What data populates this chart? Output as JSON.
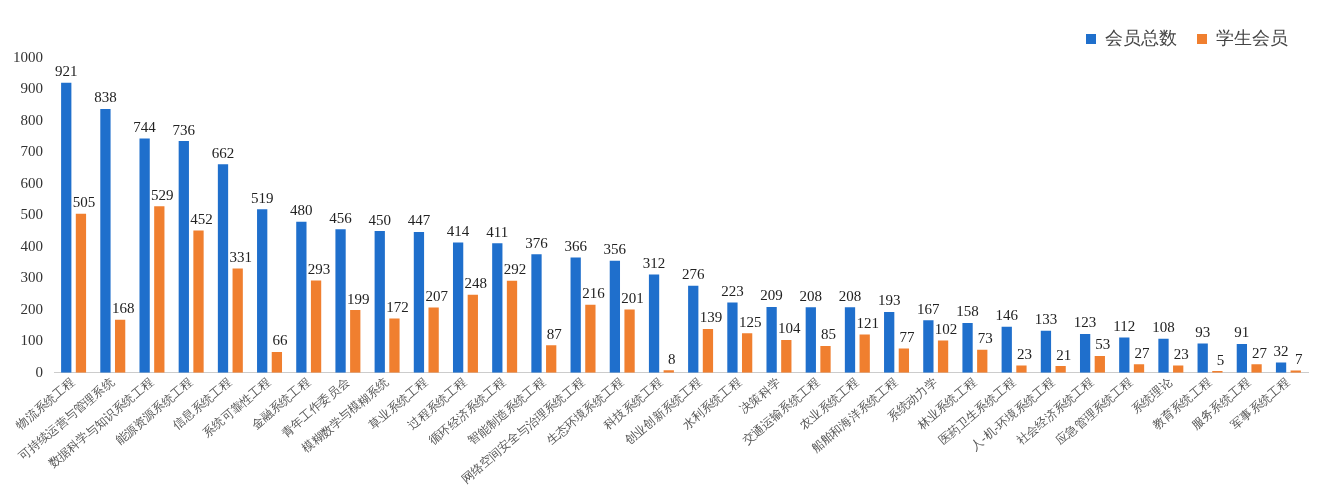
{
  "chart_data": {
    "type": "bar",
    "categories": [
      "物流系统工程",
      "可持续运营与管理系统",
      "数据科学与知识系统工程",
      "能源资源系统工程",
      "信息系统工程",
      "系统可靠性工程",
      "金融系统工程",
      "青年工作委员会",
      "模糊数学与模糊系统",
      "草业系统工程",
      "过程系统工程",
      "循环经济系统工程",
      "智能制造系统工程",
      "网络空间安全与治理系统工程",
      "生态环境系统工程",
      "科技系统工程",
      "创业创新系统工程",
      "水利系统工程",
      "决策科学",
      "交通运输系统工程",
      "农业系统工程",
      "船舶和海洋系统工程",
      "系统动力学",
      "林业系统工程",
      "医药卫生系统工程",
      "人-机-环境系统工程",
      "社会经济系统工程",
      "应急管理系统工程",
      "系统理论",
      "教育系统工程",
      "服务系统工程",
      "军事系统工程"
    ],
    "series": [
      {
        "name": "会员总数",
        "color": "#1f6fcc",
        "values": [
          921,
          838,
          744,
          736,
          662,
          519,
          480,
          456,
          450,
          447,
          414,
          411,
          376,
          366,
          356,
          312,
          276,
          223,
          209,
          208,
          208,
          193,
          167,
          158,
          146,
          133,
          123,
          112,
          108,
          93,
          91,
          32
        ]
      },
      {
        "name": "学生会员",
        "color": "#f07f2f",
        "values": [
          505,
          168,
          529,
          452,
          331,
          66,
          293,
          199,
          172,
          207,
          248,
          292,
          87,
          216,
          201,
          8,
          139,
          125,
          104,
          85,
          121,
          77,
          102,
          73,
          23,
          21,
          53,
          27,
          23,
          5,
          27,
          7
        ]
      }
    ],
    "ylim": [
      0,
      1000
    ],
    "yticks": [
      0,
      100,
      200,
      300,
      400,
      500,
      600,
      700,
      800,
      900,
      1000
    ],
    "grid": false,
    "legend": "top right",
    "data_labels": true
  }
}
